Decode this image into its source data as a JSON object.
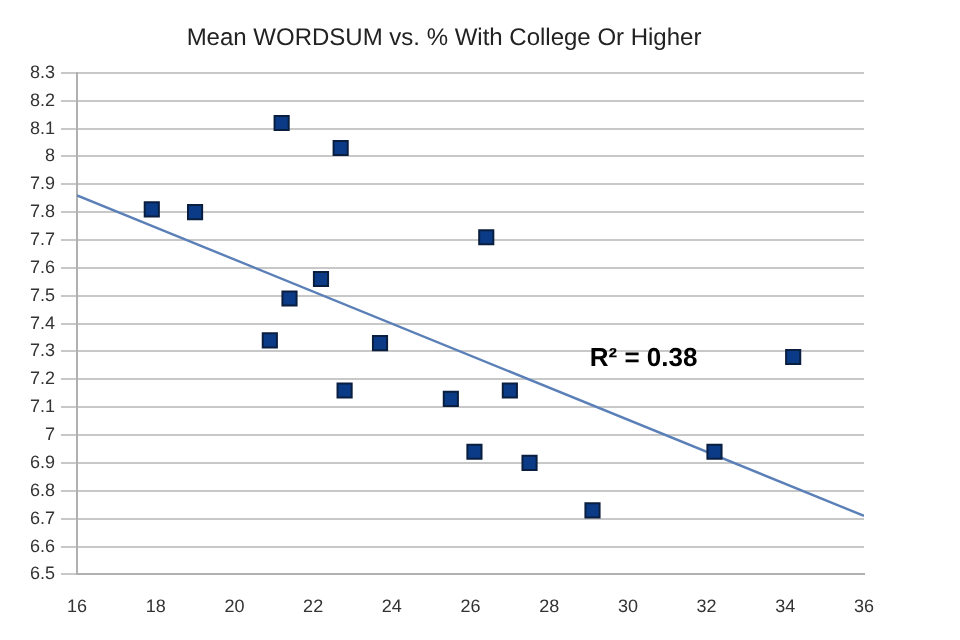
{
  "chart_data": {
    "type": "scatter",
    "title": "Mean WORDSUM vs. % With College Or Higher",
    "series": [
      {
        "color": "#0b3b86",
        "marker": "square",
        "x": [
          17.9,
          19,
          21.2,
          22.7,
          22.2,
          21.4,
          20.9,
          23.7,
          22.8,
          25.5,
          26.4,
          26.1,
          27,
          27.5,
          29.1,
          32.2,
          34.2
        ],
        "values": [
          7.81,
          7.8,
          8.12,
          8.03,
          7.56,
          7.49,
          7.34,
          7.33,
          7.16,
          7.13,
          7.71,
          6.94,
          7.16,
          6.9,
          6.73,
          6.94,
          7.28
        ]
      },
      {
        "type": "line",
        "color": "#5b80b8",
        "marker": "none",
        "x": [
          16,
          36
        ],
        "values": [
          7.86,
          6.71
        ]
      }
    ],
    "xlim": [
      16,
      36
    ],
    "xticks": [
      16,
      18,
      20,
      22,
      24,
      26,
      28,
      30,
      32,
      34,
      36
    ],
    "ylim": [
      6.5,
      8.3
    ],
    "yticks": [
      6.5,
      6.6,
      6.7,
      6.8,
      6.9,
      7,
      7.1,
      7.2,
      7.3,
      7.4,
      7.5,
      7.6,
      7.7,
      7.8,
      7.9,
      8,
      8.1,
      8.2,
      8.3
    ],
    "grid": "y",
    "legend": false,
    "annotations": [
      "R² = 0.38"
    ]
  }
}
